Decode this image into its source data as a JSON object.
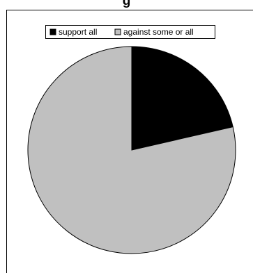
{
  "chart_data": {
    "type": "pie",
    "title": "g",
    "series": [
      {
        "name": "support all",
        "value": 21.4,
        "color": "#000000"
      },
      {
        "name": "against some or all",
        "value": 78.6,
        "color": "#c0c0c0"
      }
    ],
    "legend_position": "top",
    "start_angle_deg": 0,
    "direction": "clockwise"
  }
}
